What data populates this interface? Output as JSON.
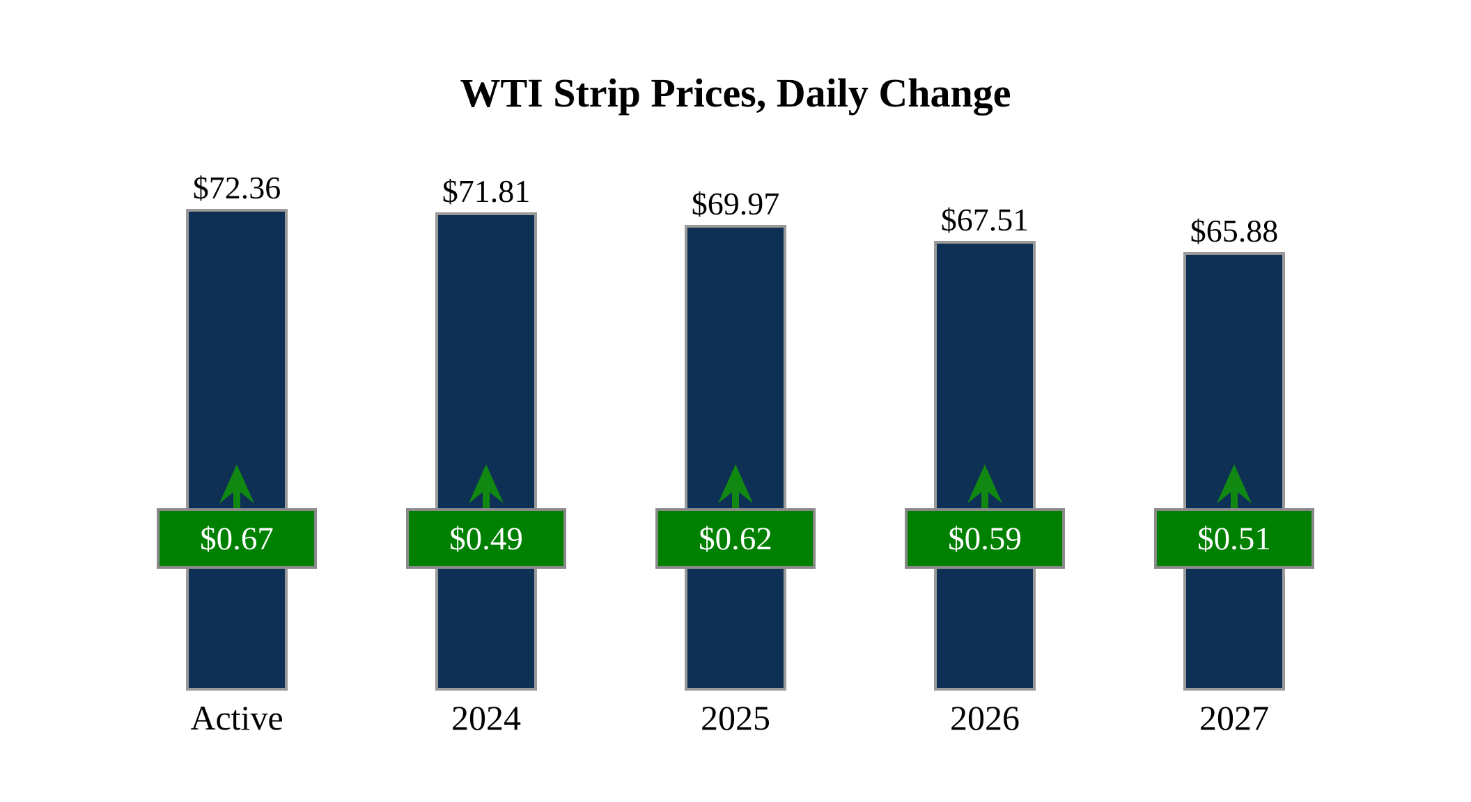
{
  "title": "WTI Strip Prices, Daily Change",
  "chart_data": {
    "type": "bar",
    "title": "WTI Strip Prices, Daily Change",
    "categories": [
      "Active",
      "2024",
      "2025",
      "2026",
      "2027"
    ],
    "series": [
      {
        "name": "Strip Price",
        "values": [
          72.36,
          71.81,
          69.97,
          67.51,
          65.88
        ],
        "labels": [
          "$72.36",
          "$71.81",
          "$69.97",
          "$67.51",
          "$65.88"
        ]
      },
      {
        "name": "Daily Change",
        "values": [
          0.67,
          0.49,
          0.62,
          0.59,
          0.51
        ],
        "labels": [
          "$0.67",
          "$0.49",
          "$0.62",
          "$0.59",
          "$0.51"
        ],
        "direction": "up"
      }
    ],
    "ylim": [
      0,
      72.36
    ],
    "grid": false,
    "legend": false,
    "colors": {
      "bar_fill": "#0e3055",
      "bar_border": "#9a9a9a",
      "badge_fill": "#008000",
      "badge_border": "#8a8a8a",
      "badge_text": "#ffffff",
      "arrow": "#118811",
      "label_text": "#000000"
    }
  }
}
